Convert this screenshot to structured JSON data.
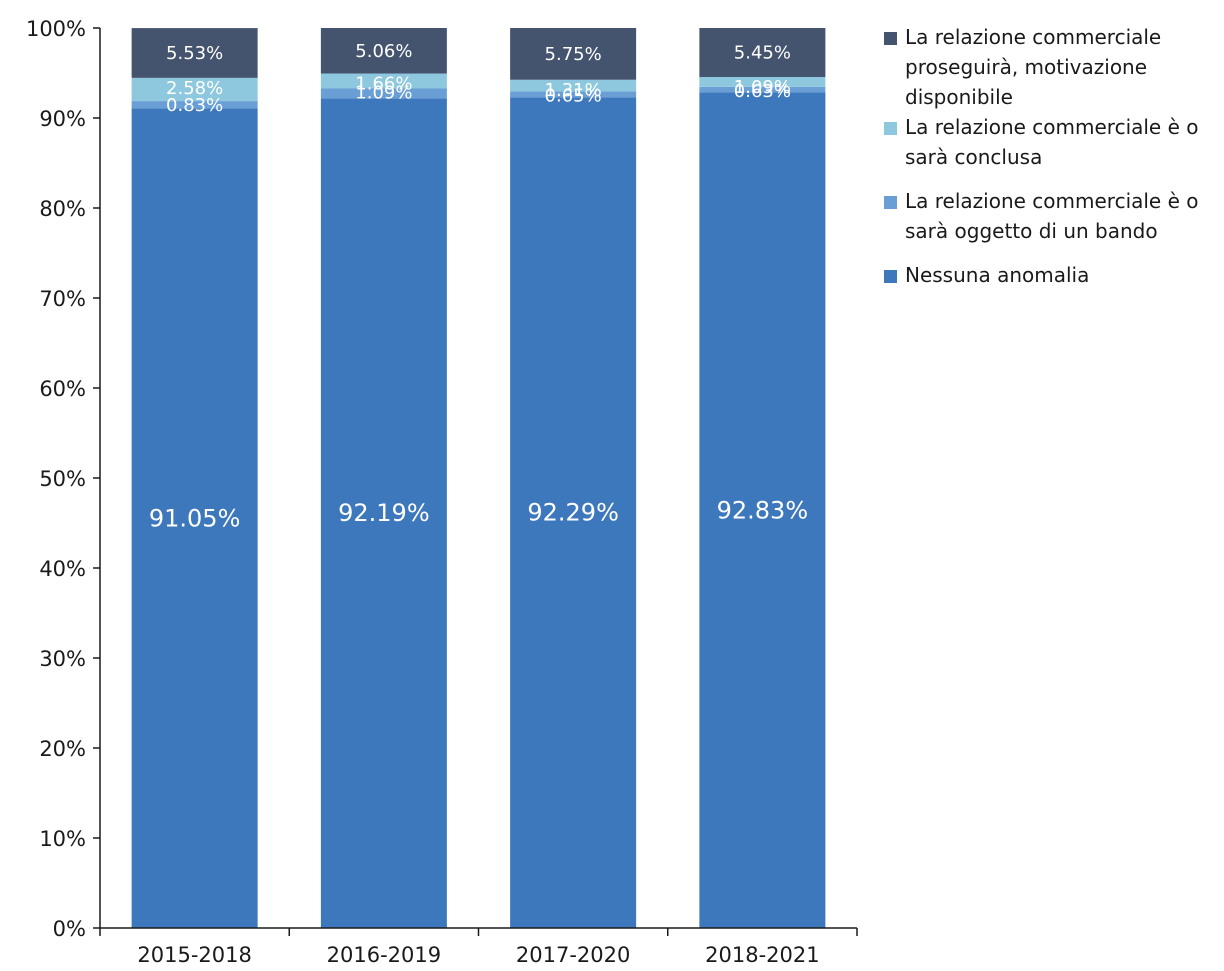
{
  "chart_data": {
    "type": "bar",
    "stacked": true,
    "categories": [
      "2015-2018",
      "2016-2019",
      "2017-2020",
      "2018-2021"
    ],
    "ylim": [
      0,
      100
    ],
    "yticks": [
      "0%",
      "10%",
      "20%",
      "30%",
      "40%",
      "50%",
      "60%",
      "70%",
      "80%",
      "90%",
      "100%"
    ],
    "series": [
      {
        "name": "Nessuna anomalia",
        "color": "#3d78bd",
        "values": [
          91.05,
          92.19,
          92.29,
          92.83
        ],
        "labels": [
          "91.05%",
          "92.19%",
          "92.29%",
          "92.83%"
        ]
      },
      {
        "name": "La relazione commerciale è o sarà oggetto di un bando",
        "color": "#6a9fd6",
        "values": [
          0.83,
          1.09,
          0.65,
          0.63
        ],
        "labels": [
          "0.83%",
          "1.09%",
          "0.65%",
          "0.63%"
        ]
      },
      {
        "name": "La relazione commerciale è o sarà conclusa",
        "color": "#8ec8de",
        "values": [
          2.58,
          1.66,
          1.31,
          1.09
        ],
        "labels": [
          "2.58%",
          "1.66%",
          "1.31%",
          "1.09%"
        ]
      },
      {
        "name": "La relazione commerciale proseguirà, motivazione disponibile",
        "color": "#44546f",
        "values": [
          5.53,
          5.06,
          5.75,
          5.45
        ],
        "labels": [
          "5.53%",
          "5.06%",
          "5.75%",
          "5.45%"
        ]
      }
    ],
    "legend": [
      {
        "label": "La relazione commerciale proseguirà, motivazione disponibile",
        "color": "#44546f"
      },
      {
        "label": "La relazione commerciale è o sarà conclusa",
        "color": "#8ec8de"
      },
      {
        "label": "La relazione commerciale è o sarà oggetto di un bando",
        "color": "#6a9fd6"
      },
      {
        "label": "Nessuna anomalia",
        "color": "#3d78bd"
      }
    ],
    "legend_position": "right",
    "grid": false
  }
}
